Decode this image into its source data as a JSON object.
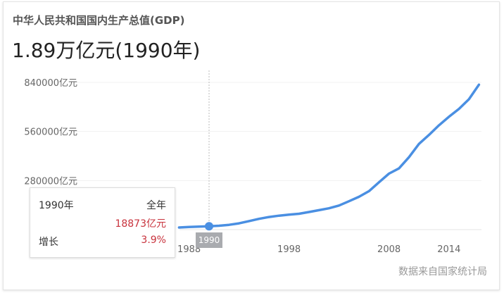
{
  "title": "中华人民共和国国内生产总值(GDP)",
  "headline_value": "1.89万亿元(1990年)",
  "source": "数据来自国家统计局",
  "tooltip": {
    "year": "1990年",
    "period": "全年",
    "value": "18873亿元",
    "growth_label": "增长",
    "growth": "3.9%"
  },
  "selected_x_label": "1990",
  "colors": {
    "line": "#4a8fe2",
    "tooltip_value": "#c8323c"
  },
  "chart_data": {
    "type": "line",
    "title": "中华人民共和国国内生产总值(GDP)",
    "xlabel": "",
    "ylabel": "",
    "ylim": [
      0,
      840000
    ],
    "yticks": [
      "280000亿元",
      "560000亿元",
      "840000亿元"
    ],
    "ytick_values": [
      280000,
      560000,
      840000
    ],
    "xticks": [
      "1988",
      "1998",
      "2008",
      "2014"
    ],
    "xtick_values": [
      1988,
      1998,
      2008,
      2014
    ],
    "grid": true,
    "highlight": {
      "x": 1990,
      "y": 18873
    },
    "x": [
      1987,
      1988,
      1989,
      1990,
      1991,
      1992,
      1993,
      1994,
      1995,
      1996,
      1997,
      1998,
      1999,
      2000,
      2001,
      2002,
      2003,
      2004,
      2005,
      2006,
      2007,
      2008,
      2009,
      2010,
      2011,
      2012,
      2013,
      2014,
      2015,
      2016,
      2017
    ],
    "values": [
      12175,
      15180,
      17180,
      18873,
      22006,
      27195,
      35673,
      48638,
      61340,
      71814,
      79715,
      85196,
      90564,
      100280,
      110863,
      121717,
      137422,
      161840,
      187319,
      219439,
      270232,
      319516,
      349081,
      413030,
      489301,
      540367,
      595244,
      643974,
      689052,
      744127,
      827122
    ]
  }
}
